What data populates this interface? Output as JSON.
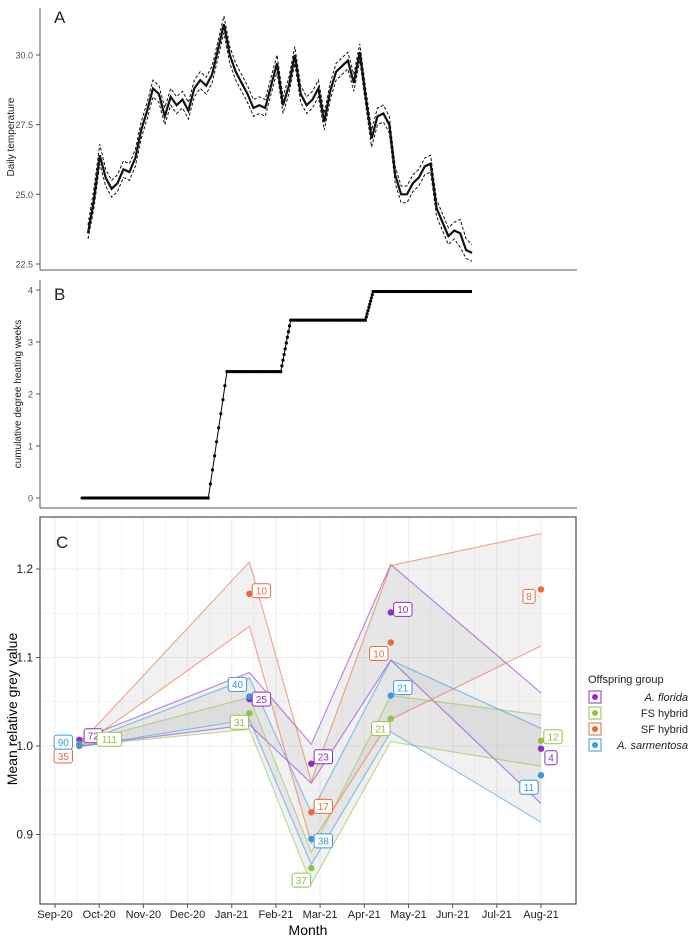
{
  "colors": {
    "axis": "#555555",
    "tick_text": "#4d4d4d",
    "grid": "#ebebeb",
    "panel_c_bg": "#ffffff",
    "ribbon": "#bdbdbd",
    "a_florida": "#8b2fc9",
    "fs_hybrid": "#8fc34a",
    "sf_hybrid": "#ea6a3e",
    "a_sarmentosa": "#3d97e3"
  },
  "chart_data": [
    {
      "panel": "A",
      "type": "line",
      "panel_label": "A",
      "ylabel": "Daily temperature",
      "xlabel": "",
      "ylim": [
        22.4,
        31.8
      ],
      "yticks": [
        22.5,
        25.0,
        27.5,
        30.0
      ],
      "ytick_labels": [
        "22.5",
        "25.0",
        "27.5",
        "30.0"
      ],
      "x_unit": "weeks since Sep-20",
      "xlim": [
        0,
        47
      ],
      "series": [
        {
          "name": "mean",
          "style": "solid",
          "x": [
            6,
            6.5,
            7,
            7.5,
            8,
            8.5,
            9,
            9.5,
            10,
            10.5,
            11,
            11.5,
            12,
            12.5,
            13,
            13.5,
            14,
            14.5,
            15,
            15.5,
            16,
            16.5,
            17,
            17.5,
            18,
            18.5,
            19,
            19.5,
            20,
            20.5,
            21,
            21.5,
            22,
            22.5,
            23,
            23.5,
            24,
            24.5,
            25,
            25.5,
            26,
            26.5,
            27,
            27.5,
            28,
            28.5,
            29,
            29.5,
            30,
            30.5,
            31,
            31.5,
            32,
            32.5,
            33,
            33.5,
            34,
            34.5,
            35,
            35.5,
            36,
            36.5,
            37,
            37.5,
            38,
            38.5
          ],
          "y": [
            23.6,
            24.8,
            26.4,
            25.6,
            25.2,
            25.4,
            25.9,
            25.8,
            26.3,
            27.3,
            28.0,
            28.8,
            28.6,
            27.8,
            28.5,
            28.2,
            28.4,
            28.0,
            28.8,
            29.1,
            28.9,
            29.3,
            30.2,
            31.1,
            30.0,
            29.4,
            29.0,
            28.6,
            28.1,
            28.2,
            28.1,
            28.9,
            29.7,
            28.2,
            28.9,
            30.0,
            28.6,
            28.2,
            28.4,
            28.8,
            27.6,
            28.7,
            29.4,
            29.6,
            29.8,
            29.0,
            30.1,
            28.5,
            27.0,
            27.8,
            27.9,
            27.5,
            25.7,
            25.0,
            25.0,
            25.4,
            25.6,
            26.0,
            26.1,
            24.5,
            24.0,
            23.5,
            23.7,
            23.6,
            23.0,
            22.9
          ]
        },
        {
          "name": "upper",
          "style": "dashed",
          "x": [
            6,
            6.5,
            7,
            7.5,
            8,
            8.5,
            9,
            9.5,
            10,
            10.5,
            11,
            11.5,
            12,
            12.5,
            13,
            13.5,
            14,
            14.5,
            15,
            15.5,
            16,
            16.5,
            17,
            17.5,
            18,
            18.5,
            19,
            19.5,
            20,
            20.5,
            21,
            21.5,
            22,
            22.5,
            23,
            23.5,
            24,
            24.5,
            25,
            25.5,
            26,
            26.5,
            27,
            27.5,
            28,
            28.5,
            29,
            29.5,
            30,
            30.5,
            31,
            31.5,
            32,
            32.5,
            33,
            33.5,
            34,
            34.5,
            35,
            35.5,
            36,
            36.5,
            37,
            37.5,
            38,
            38.5
          ],
          "y": [
            23.9,
            25.2,
            26.8,
            25.9,
            25.5,
            25.7,
            26.2,
            26.1,
            26.6,
            27.6,
            28.3,
            29.1,
            28.9,
            28.1,
            28.8,
            28.5,
            28.7,
            28.3,
            29.1,
            29.4,
            29.2,
            29.6,
            30.5,
            31.4,
            30.3,
            29.7,
            29.3,
            28.9,
            28.4,
            28.5,
            28.4,
            29.2,
            30.0,
            28.5,
            29.2,
            30.3,
            28.9,
            28.5,
            28.7,
            29.1,
            27.9,
            29.0,
            29.7,
            29.9,
            30.1,
            29.3,
            30.4,
            28.8,
            27.3,
            28.1,
            28.2,
            27.8,
            26.0,
            25.3,
            25.3,
            25.7,
            25.9,
            26.3,
            26.4,
            24.8,
            24.3,
            23.8,
            24.0,
            24.1,
            23.4,
            23.2
          ]
        },
        {
          "name": "lower",
          "style": "dashed",
          "x": [
            6,
            6.5,
            7,
            7.5,
            8,
            8.5,
            9,
            9.5,
            10,
            10.5,
            11,
            11.5,
            12,
            12.5,
            13,
            13.5,
            14,
            14.5,
            15,
            15.5,
            16,
            16.5,
            17,
            17.5,
            18,
            18.5,
            19,
            19.5,
            20,
            20.5,
            21,
            21.5,
            22,
            22.5,
            23,
            23.5,
            24,
            24.5,
            25,
            25.5,
            26,
            26.5,
            27,
            27.5,
            28,
            28.5,
            29,
            29.5,
            30,
            30.5,
            31,
            31.5,
            32,
            32.5,
            33,
            33.5,
            34,
            34.5,
            35,
            35.5,
            36,
            36.5,
            37,
            37.5,
            38,
            38.5
          ],
          "y": [
            23.4,
            24.5,
            26.1,
            25.3,
            24.9,
            25.1,
            25.6,
            25.5,
            26.0,
            27.0,
            27.7,
            28.5,
            28.3,
            27.5,
            28.2,
            27.9,
            28.1,
            27.7,
            28.5,
            28.8,
            28.6,
            29.0,
            29.9,
            30.8,
            29.7,
            29.1,
            28.7,
            28.3,
            27.8,
            27.9,
            27.8,
            28.6,
            29.4,
            27.9,
            28.6,
            29.7,
            28.3,
            27.9,
            28.1,
            28.5,
            27.3,
            28.4,
            29.1,
            29.3,
            29.5,
            28.7,
            29.8,
            28.2,
            26.7,
            27.5,
            27.6,
            27.2,
            25.4,
            24.7,
            24.7,
            25.1,
            25.3,
            25.7,
            25.8,
            24.2,
            23.7,
            23.2,
            23.4,
            23.1,
            22.7,
            22.6
          ]
        }
      ]
    },
    {
      "panel": "B",
      "type": "scatter",
      "panel_label": "B",
      "ylabel": "cumulative degree heating weeks",
      "xlabel": "",
      "ylim": [
        -0.2,
        4.15
      ],
      "yticks": [
        0,
        1,
        2,
        3,
        4
      ],
      "ytick_labels": [
        "0",
        "1",
        "2",
        "3",
        "4"
      ],
      "x_unit": "weeks since Sep-20",
      "xlim": [
        0,
        47
      ],
      "steps": [
        {
          "x_from": 6,
          "x_to": 17.5,
          "y": 0
        },
        {
          "x_from": 19.2,
          "x_to": 24.1,
          "y": 2.43
        },
        {
          "x_from": 25,
          "x_to": 31.8,
          "y": 3.42
        },
        {
          "x_from": 32.5,
          "x_to": 41.5,
          "y": 3.97
        }
      ],
      "risers": [
        {
          "x_from": 17.5,
          "x_to": 19.2,
          "y_from": 0,
          "y_to": 2.43
        },
        {
          "x_from": 24.1,
          "x_to": 25,
          "y_from": 2.43,
          "y_to": 3.42
        },
        {
          "x_from": 31.8,
          "x_to": 32.5,
          "y_from": 3.42,
          "y_to": 3.97
        }
      ]
    },
    {
      "panel": "C",
      "type": "line",
      "panel_label": "C",
      "title": "",
      "xlabel": "Month",
      "ylabel": "Mean relative grey value",
      "ylim": [
        0.875,
        1.255
      ],
      "yticks": [
        0.9,
        1.0,
        1.1,
        1.2
      ],
      "ytick_labels": [
        "0.9",
        "1.0",
        "1.1",
        "1.2"
      ],
      "categories": [
        "Sep-20",
        "Oct-20",
        "Nov-20",
        "Dec-20",
        "Jan-21",
        "Feb-21",
        "Mar-21",
        "Apr-21",
        "May-21",
        "Jun-21",
        "Jul-21",
        "Aug-21"
      ],
      "x_unit": "months since Sep-20",
      "legend_title": "Offspring group",
      "legend_position": "right",
      "series": [
        {
          "name": "A. florida",
          "italic": true,
          "color_key": "a_florida",
          "x": [
            0.55,
            4.4,
            7.6,
            11.0
          ],
          "y": [
            1.007,
            1.053,
            1.151,
            0.997
          ],
          "n_labels": [
            "72",
            "25",
            "10",
            "4"
          ],
          "upper": [
            1.007,
            1.083,
            1.205,
            1.06
          ],
          "lower": [
            1.0,
            1.024,
            1.097,
            0.935
          ]
        },
        {
          "name": "FS hybrid",
          "italic": false,
          "color_key": "fs_hybrid",
          "x": [
            0.55,
            4.4,
            7.6,
            11.0
          ],
          "y": [
            1.002,
            1.037,
            1.031,
            1.006
          ],
          "n_labels": [
            "111",
            "31",
            "21",
            "12"
          ],
          "upper": [
            1.004,
            1.055,
            1.057,
            1.035
          ],
          "lower": [
            1.0,
            1.019,
            1.005,
            0.977
          ]
        },
        {
          "name": "SF hybrid",
          "italic": false,
          "color_key": "sf_hybrid",
          "x": [
            0.55,
            4.4,
            7.6,
            11.0
          ],
          "y": [
            1.0,
            1.172,
            1.117,
            1.177
          ],
          "n_labels": [
            "35",
            "10",
            "10",
            "8"
          ],
          "upper": [
            1.002,
            1.208,
            1.204,
            1.24
          ],
          "lower": [
            0.998,
            1.135,
            1.03,
            1.113
          ]
        },
        {
          "name": "A. sarmentosa",
          "italic": true,
          "color_key": "a_sarmentosa",
          "x": [
            0.55,
            4.4,
            7.6,
            11.0
          ],
          "y": [
            1.001,
            1.056,
            1.057,
            0.967
          ],
          "n_labels": [
            "90",
            "40",
            "21",
            "11"
          ],
          "upper": [
            1.003,
            1.077,
            1.097,
            1.02
          ],
          "lower": [
            0.999,
            1.03,
            1.016,
            0.914
          ]
        }
      ],
      "feb_points": [
        {
          "series": "A. florida",
          "x": 5.8,
          "y": 0.98,
          "n": "23",
          "upper": 1.002,
          "lower": 0.958
        },
        {
          "series": "SF hybrid",
          "x": 5.8,
          "y": 0.925,
          "n": "17",
          "upper": 0.96,
          "lower": 0.89
        },
        {
          "series": "A. sarmentosa",
          "x": 5.8,
          "y": 0.895,
          "n": "38",
          "upper": 0.925,
          "lower": 0.866
        },
        {
          "series": "FS hybrid",
          "x": 5.8,
          "y": 0.862,
          "n": "37",
          "upper": 0.88,
          "lower": 0.844
        }
      ]
    }
  ]
}
